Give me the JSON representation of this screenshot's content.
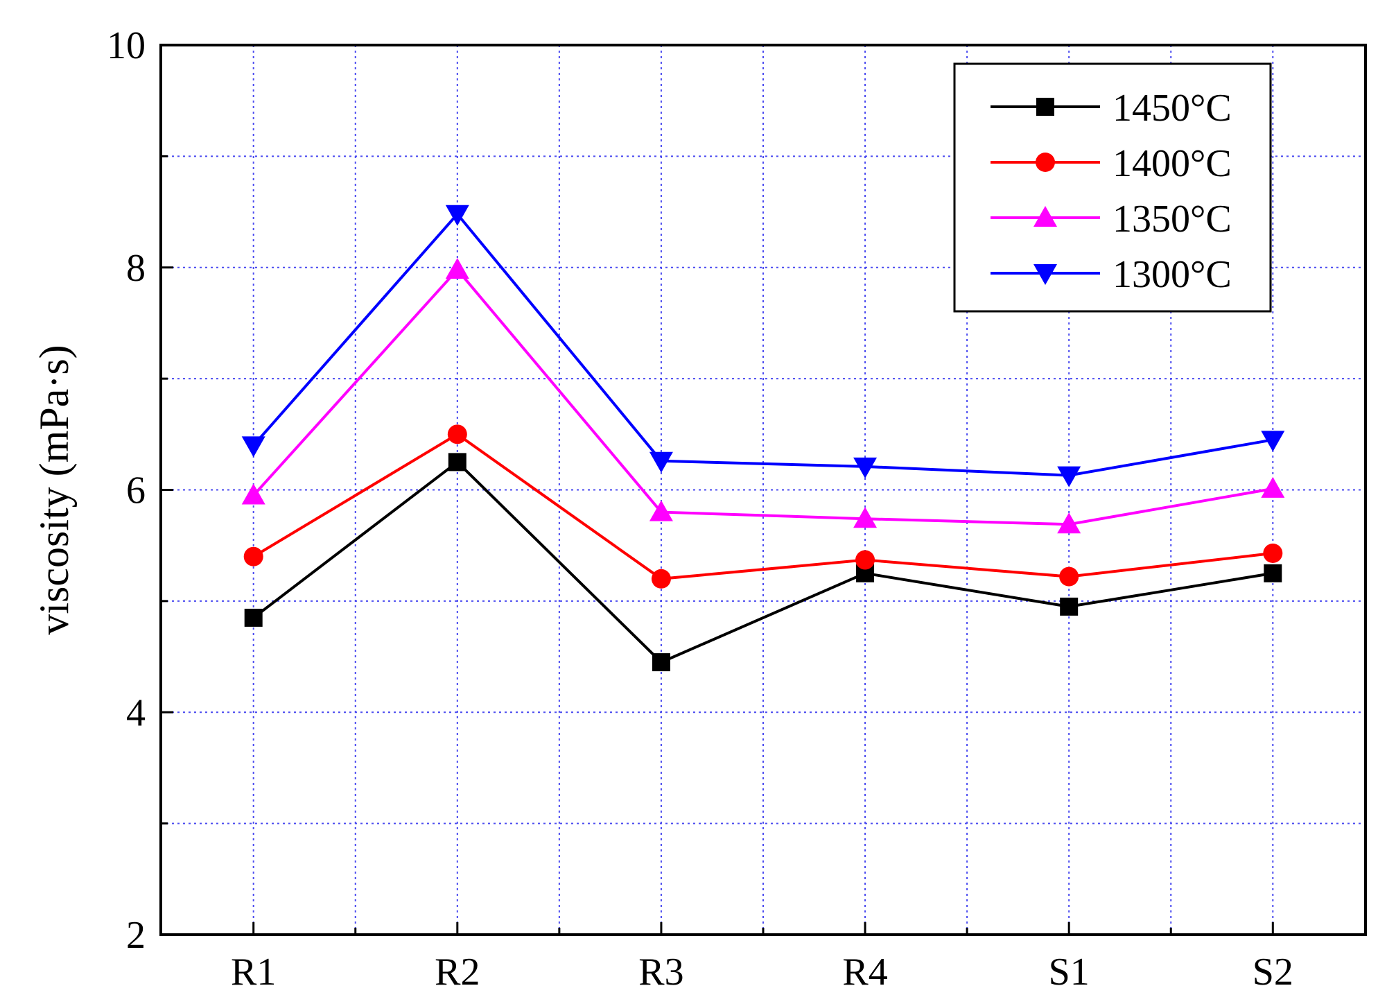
{
  "chart_data": {
    "type": "line",
    "ylabel": "viscosity (mPa·s)",
    "xlabel": "",
    "categories": [
      "R1",
      "R2",
      "R3",
      "R4",
      "S1",
      "S2"
    ],
    "ylim": [
      2,
      10
    ],
    "yticks": [
      2,
      4,
      6,
      8,
      10
    ],
    "grid": true,
    "legend_position": "top-right",
    "series": [
      {
        "name": "1450°C",
        "color": "#000000",
        "marker": "square",
        "values": [
          4.85,
          6.25,
          4.45,
          5.25,
          4.95,
          5.25
        ]
      },
      {
        "name": "1400°C",
        "color": "#ff0000",
        "marker": "circle",
        "values": [
          5.4,
          6.5,
          5.2,
          5.37,
          5.22,
          5.43
        ]
      },
      {
        "name": "1350°C",
        "color": "#ff00ff",
        "marker": "triangle-up",
        "values": [
          5.95,
          7.98,
          5.8,
          5.74,
          5.69,
          6.01
        ]
      },
      {
        "name": "1300°C",
        "color": "#0000ff",
        "marker": "triangle-down",
        "values": [
          6.4,
          8.48,
          6.26,
          6.21,
          6.13,
          6.45
        ]
      }
    ]
  }
}
